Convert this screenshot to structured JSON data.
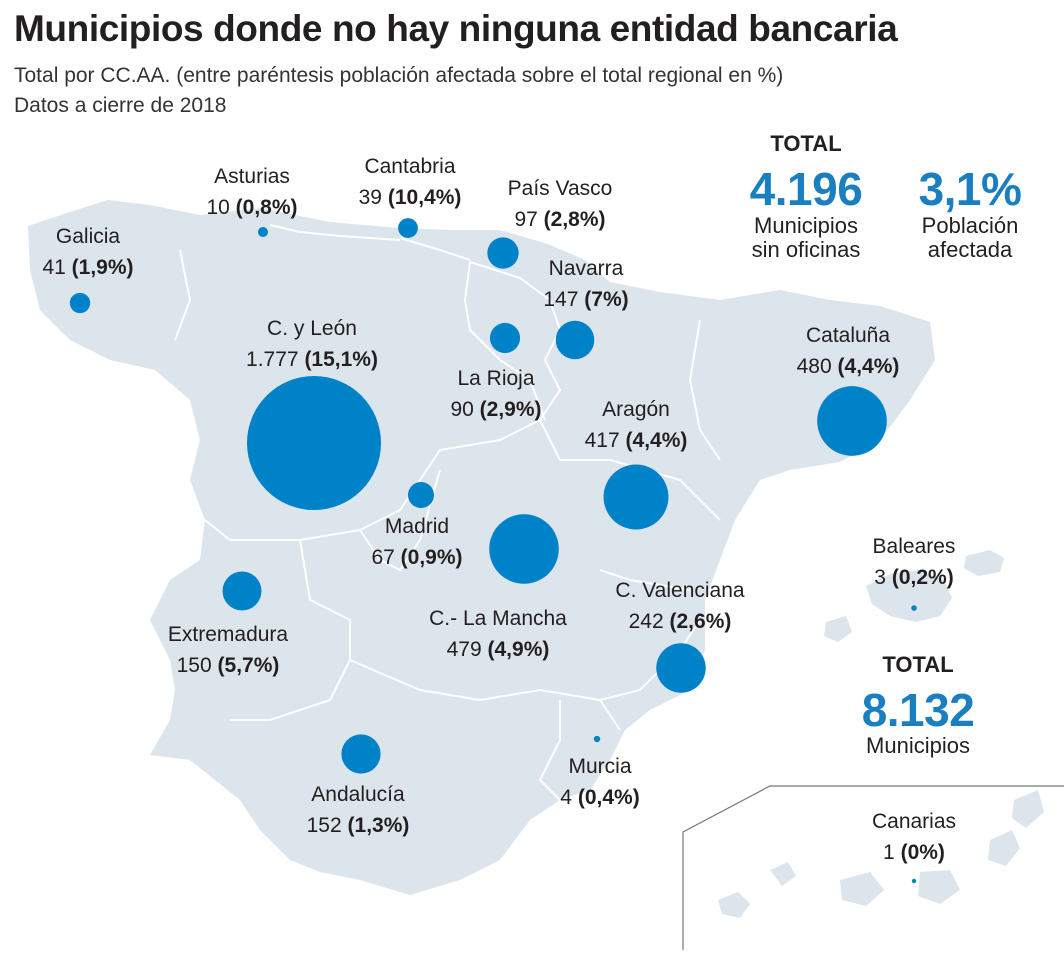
{
  "title": "Municipios donde no hay ninguna entidad bancaria",
  "subtitle": "Total por CC.AA. (entre paréntesis población afectada sobre el total regional en %)",
  "note": "Datos a cierre de 2018",
  "colors": {
    "bubble": "#0082c8",
    "land": "#dce4ec",
    "border": "#ffffff",
    "accent": "#1a7fc1"
  },
  "totals": {
    "sin_oficinas": {
      "header": "TOTAL",
      "value": "4.196",
      "caption_1": "Municipios",
      "caption_2": "sin oficinas"
    },
    "poblacion": {
      "value": "3,1%",
      "caption_1": "Población",
      "caption_2": "afectada"
    },
    "municipios": {
      "header": "TOTAL",
      "value": "8.132",
      "caption": "Municipios"
    }
  },
  "regions": [
    {
      "name": "Galicia",
      "count": "41",
      "pct": "(1,9%)"
    },
    {
      "name": "Asturias",
      "count": "10",
      "pct": "(0,8%)"
    },
    {
      "name": "Cantabria",
      "count": "39",
      "pct": "(10,4%)"
    },
    {
      "name": "País Vasco",
      "count": "97",
      "pct": "(2,8%)"
    },
    {
      "name": "Navarra",
      "count": "147",
      "pct": "(7%)"
    },
    {
      "name": "C. y León",
      "count": "1.777",
      "pct": "(15,1%)"
    },
    {
      "name": "La Rioja",
      "count": "90",
      "pct": "(2,9%)"
    },
    {
      "name": "Aragón",
      "count": "417",
      "pct": "(4,4%)"
    },
    {
      "name": "Cataluña",
      "count": "480",
      "pct": "(4,4%)"
    },
    {
      "name": "Madrid",
      "count": "67",
      "pct": "(0,9%)"
    },
    {
      "name": "Extremadura",
      "count": "150",
      "pct": "(5,7%)"
    },
    {
      "name": "C.- La Mancha",
      "count": "479",
      "pct": "(4,9%)"
    },
    {
      "name": "C. Valenciana",
      "count": "242",
      "pct": "(2,6%)"
    },
    {
      "name": "Baleares",
      "count": "3",
      "pct": "(0,2%)"
    },
    {
      "name": "Murcia",
      "count": "4",
      "pct": "(0,4%)"
    },
    {
      "name": "Andalucía",
      "count": "152",
      "pct": "(1,3%)"
    },
    {
      "name": "Canarias",
      "count": "1",
      "pct": "(0%)"
    }
  ]
}
